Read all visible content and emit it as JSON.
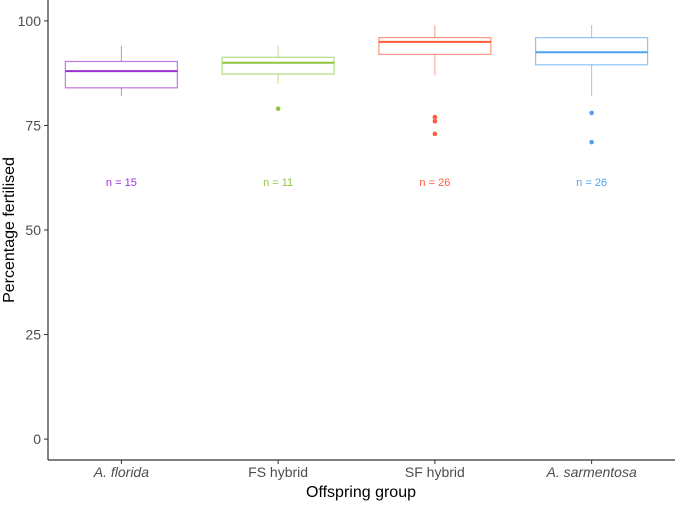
{
  "chart_data": {
    "type": "box",
    "title": "",
    "xlabel": "Offspring group",
    "ylabel": "Percentage fertilised",
    "ylim": [
      -5,
      105
    ],
    "yticks": [
      0,
      25,
      50,
      75,
      100
    ],
    "ytick_labels": [
      "0",
      "25",
      "50",
      "75",
      "100"
    ],
    "grid": false,
    "categories": [
      "A. florida",
      "FS hybrid",
      "SF hybrid",
      "A. sarmentosa"
    ],
    "italic_categories": [
      true,
      false,
      false,
      true
    ],
    "boxes": [
      {
        "name": "A. florida",
        "color": "#9b30d9",
        "whisker_low": 82,
        "q1": 84,
        "median": 88,
        "q3": 90.3,
        "whisker_high": 94,
        "outliers": [],
        "n_label": "n = 15"
      },
      {
        "name": "FS hybrid",
        "color": "#8cc63f",
        "whisker_low": 85,
        "q1": 87.3,
        "median": 90,
        "q3": 91.3,
        "whisker_high": 94,
        "outliers": [
          79
        ],
        "n_label": "n = 11"
      },
      {
        "name": "SF hybrid",
        "color": "#ff5c3a",
        "whisker_low": 87,
        "q1": 92,
        "median": 95,
        "q3": 96,
        "whisker_high": 99,
        "outliers": [
          77,
          76,
          73
        ],
        "n_label": "n = 26"
      },
      {
        "name": "A. sarmentosa",
        "color": "#4ea3f0",
        "whisker_low": 82,
        "q1": 89.5,
        "median": 92.5,
        "q3": 96,
        "whisker_high": 99,
        "outliers": [
          78,
          71
        ],
        "n_label": "n = 26"
      }
    ],
    "n_label_y": 61.5
  }
}
